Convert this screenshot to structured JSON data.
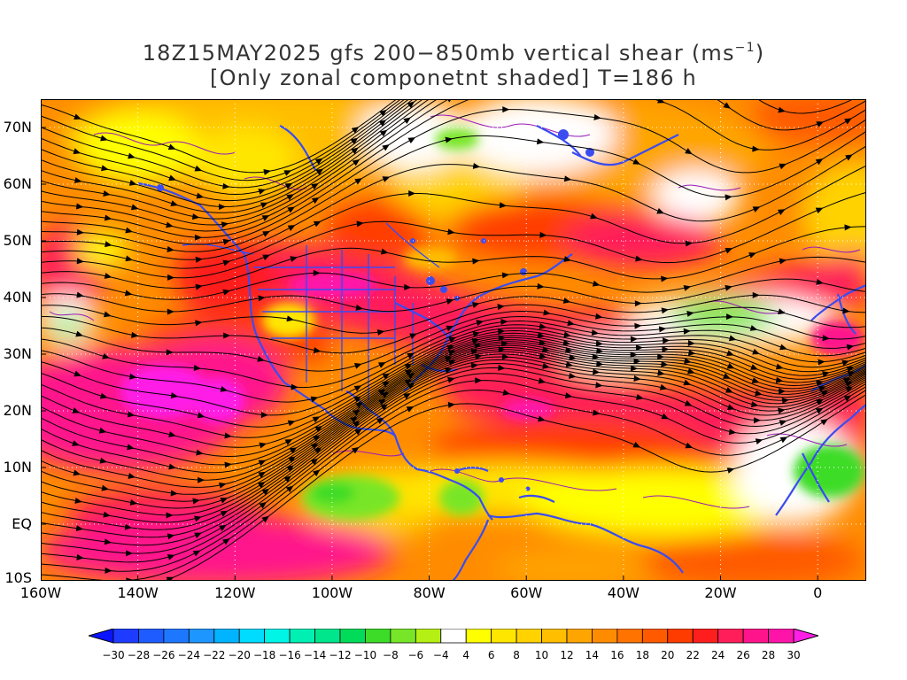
{
  "title": {
    "line1_main": "18Z15MAY2025 gfs 200−850mb vertical shear (ms",
    "line1_sup": "−1",
    "line1_end": ")",
    "line2": "[Only zonal componetnt shaded] T=186 h"
  },
  "map": {
    "lat_labels": [
      "70N",
      "60N",
      "50N",
      "40N",
      "30N",
      "20N",
      "10N",
      "EQ",
      "10S"
    ],
    "lat_values": [
      70,
      60,
      50,
      40,
      30,
      20,
      10,
      0,
      -10
    ],
    "lon_labels": [
      "160W",
      "140W",
      "120W",
      "100W",
      "80W",
      "60W",
      "40W",
      "20W",
      "0"
    ],
    "lon_values": [
      -160,
      -140,
      -120,
      -100,
      -80,
      -60,
      -40,
      -20,
      0
    ],
    "lon_range": [
      -160,
      10
    ],
    "lat_range": [
      -10,
      75
    ],
    "field": "zonal vertical shear 200-850mb",
    "overlays": [
      "streamlines",
      "coastlines",
      "country borders",
      "state borders",
      "purple contour lines"
    ],
    "grid": "dotted"
  },
  "colorbar": {
    "labels": [
      "−30",
      "−28",
      "−26",
      "−24",
      "−22",
      "−20",
      "−18",
      "−16",
      "−14",
      "−12",
      "−10",
      "−8",
      "−6",
      "−4",
      "4",
      "6",
      "8",
      "10",
      "12",
      "14",
      "16",
      "18",
      "20",
      "22",
      "24",
      "26",
      "28",
      "30"
    ],
    "colors": [
      "#1e3cff",
      "#1e5cff",
      "#1e78ff",
      "#1e96ff",
      "#00b4ff",
      "#00dcff",
      "#00f5e6",
      "#00f0b4",
      "#00e68c",
      "#00dc5a",
      "#3cdc28",
      "#78e628",
      "#b4f014",
      "#ffffff",
      "#ffff00",
      "#ffe600",
      "#ffd200",
      "#ffbe00",
      "#ffa500",
      "#ff8c00",
      "#ff7300",
      "#ff5a00",
      "#ff3c00",
      "#ff1e1e",
      "#ff1e5a",
      "#ff148c",
      "#ff14aa"
    ],
    "under_color": "#0a14ff",
    "over_color": "#ff1ee6"
  }
}
